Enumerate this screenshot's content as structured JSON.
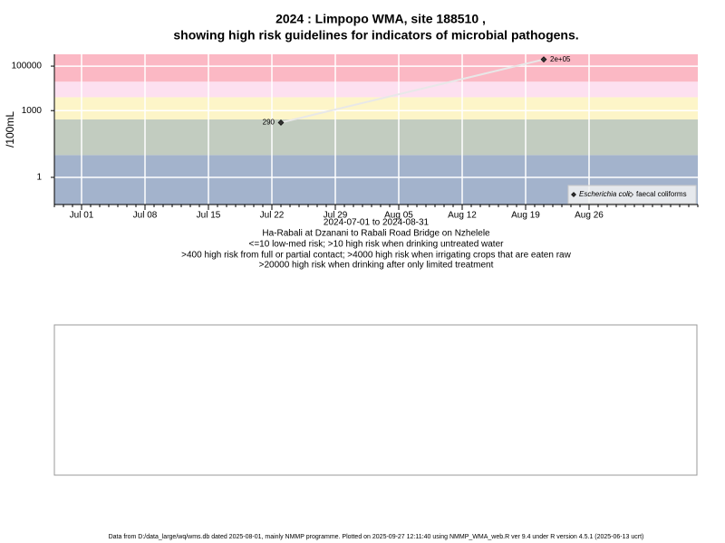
{
  "chart_data": {
    "type": "scatter",
    "title": "2024 : Limpopo WMA, site 188510 ,",
    "subtitle": "showing high risk guidelines for indicators of microbial pathogens.",
    "y_label": "/100mL",
    "x_label": "2024-07-01 to 2024-08-31",
    "notes": [
      "Ha-Rabali at Dzanani to Rabali Road Bridge on Nzhelele",
      "<=10 low-med risk; >10 high risk when drinking untreated water",
      ">400 high risk from full or partial contact; >4000 high risk when irrigating crops that are eaten raw",
      ">20000 high risk when drinking after only limited treatment"
    ],
    "footer": "Data from D:/data_large/wq/wms.db dated 2025-08-01, mainly NMMP programme. Plotted on 2025-09-27 12:11:40 using NMMP_WMA_web.R ver 9.4 under R version 4.5.1 (2025-06-13 ucrt)",
    "log_y": true,
    "grid": true,
    "legend_position": "bottom-right",
    "xlim": [
      "2024-06-28",
      "2024-09-07"
    ],
    "xticks": [
      {
        "value": "2024-07-01",
        "label": "Jul 01"
      },
      {
        "value": "2024-07-08",
        "label": "Jul 08"
      },
      {
        "value": "2024-07-15",
        "label": "Jul 15"
      },
      {
        "value": "2024-07-22",
        "label": "Jul 22"
      },
      {
        "value": "2024-07-29",
        "label": "Jul 29"
      },
      {
        "value": "2024-08-05",
        "label": "Aug 05"
      },
      {
        "value": "2024-08-12",
        "label": "Aug 12"
      },
      {
        "value": "2024-08-19",
        "label": "Aug 19"
      },
      {
        "value": "2024-08-26",
        "label": "Aug 26"
      }
    ],
    "ylim": [
      0.06,
      340000
    ],
    "yticks": [
      1,
      1000,
      100000
    ],
    "bands": {
      "thresholds": [
        10,
        400,
        4000,
        20000
      ],
      "colors": [
        "#a3b3cc",
        "#c2ccc0",
        "#fdf5c8",
        "#fde0f0",
        "#fbb8c4"
      ]
    },
    "series": [
      {
        "name": "Escherichia coli",
        "color": "#333333",
        "x": [
          "2024-07-23",
          "2024-08-21"
        ],
        "values": [
          290,
          200000
        ],
        "value_labels": [
          "290",
          "2e+05"
        ]
      },
      {
        "name": "faecal coliforms",
        "color": "#ffffff",
        "x": [],
        "values": []
      }
    ]
  }
}
